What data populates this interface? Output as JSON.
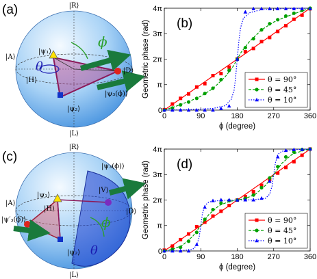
{
  "panels": {
    "a": "(a)",
    "b": "(b)",
    "c": "(c)",
    "d": "(d)"
  },
  "sphere": {
    "ket_R": "|R⟩",
    "ket_L": "|L⟩",
    "ket_A": "|A⟩",
    "ket_D": "|D⟩",
    "ket_H": "|H⟩",
    "ket_V": "|V⟩",
    "psi1": "|ψ₁⟩",
    "psi2": "|ψ₂⟩",
    "psi3": "|ψ₃(ϕ)⟩",
    "psi3p": "|ψ′₃(ϕ)⟩",
    "phi": "ϕ",
    "theta": "θ"
  },
  "colors": {
    "theta90": "#ff0000",
    "theta45": "#00a000",
    "theta10": "#0000ff"
  },
  "chart_data": [
    {
      "type": "line",
      "panel": "(b)",
      "xlabel": "ϕ (degree)",
      "ylabel": "Geometric phase (rad)",
      "xlim": [
        0,
        360
      ],
      "ylim": [
        0,
        12.566
      ],
      "xticks": [
        0,
        90,
        180,
        270,
        360
      ],
      "xtick_labels": [
        "0",
        "90",
        "180",
        "270",
        "360"
      ],
      "yticks": [
        0,
        3.1416,
        6.2832,
        9.4248,
        12.566
      ],
      "ytick_labels": [
        "0",
        "π",
        "2π",
        "3π",
        "4π"
      ],
      "legend_position": "bottom-right",
      "series": [
        {
          "name": "θ = 90°",
          "style": "solid",
          "marker": "square",
          "color": "#ff0000",
          "x": [
            0,
            24,
            48,
            72,
            96,
            120,
            144,
            168,
            192,
            216,
            240,
            264,
            288,
            312,
            336,
            360
          ],
          "y": [
            0,
            0.84,
            1.68,
            2.51,
            3.35,
            4.19,
            5.03,
            5.86,
            6.7,
            7.54,
            8.38,
            9.22,
            10.05,
            10.89,
            11.73,
            12.57
          ],
          "markers_x": [
            0,
            20,
            40,
            60,
            80,
            100,
            120,
            140,
            160,
            180,
            200,
            220,
            240,
            260,
            280,
            300,
            320,
            340,
            360
          ],
          "markers_y": [
            0.05,
            0.75,
            1.45,
            2.0,
            2.85,
            3.25,
            4.25,
            4.5,
            5.3,
            6.3,
            7.2,
            7.6,
            8.45,
            8.95,
            9.7,
            10.4,
            11.2,
            11.7,
            12.5
          ]
        },
        {
          "name": "θ = 45°",
          "style": "dashed",
          "marker": "circle",
          "color": "#00a000",
          "x": [
            0,
            30,
            60,
            90,
            120,
            150,
            170,
            180,
            190,
            210,
            240,
            270,
            300,
            330,
            360
          ],
          "y": [
            0,
            0.5,
            1.05,
            1.7,
            2.65,
            4.1,
            5.4,
            6.28,
            7.15,
            8.45,
            9.9,
            10.85,
            11.5,
            12.05,
            12.57
          ],
          "markers_x": [
            0,
            20,
            40,
            60,
            80,
            100,
            120,
            140,
            160,
            180,
            200,
            220,
            240,
            260,
            280,
            300,
            320,
            340,
            360
          ],
          "markers_y": [
            0,
            0.25,
            0.65,
            1.0,
            1.45,
            2.05,
            2.7,
            3.75,
            4.9,
            6.28,
            7.7,
            8.8,
            9.9,
            10.65,
            11.15,
            11.6,
            11.95,
            12.3,
            12.57
          ]
        },
        {
          "name": "θ = 10°",
          "style": "dotted",
          "marker": "triangle",
          "color": "#0000ff",
          "x": [
            0,
            60,
            120,
            150,
            165,
            172,
            176,
            180,
            184,
            188,
            195,
            210,
            240,
            300,
            360
          ],
          "y": [
            0,
            0.05,
            0.2,
            0.55,
            1.3,
            2.4,
            4.0,
            6.28,
            8.5,
            10.1,
            11.3,
            12.0,
            12.4,
            12.52,
            12.57
          ],
          "markers_x": [
            0,
            20,
            40,
            60,
            80,
            100,
            120,
            140,
            160,
            180,
            200,
            220,
            240,
            260,
            280,
            300,
            320,
            340,
            360
          ],
          "markers_y": [
            0,
            0,
            0,
            0,
            0,
            0,
            0,
            0.2,
            0.5,
            6.28,
            12.1,
            12.5,
            12.5,
            12.5,
            12.5,
            12.5,
            12.5,
            12.5,
            12.5
          ]
        }
      ]
    },
    {
      "type": "line",
      "panel": "(d)",
      "xlabel": "ϕ (degree)",
      "ylabel": "Geometric phase (rad)",
      "xlim": [
        0,
        360
      ],
      "ylim": [
        0,
        12.566
      ],
      "xticks": [
        0,
        90,
        180,
        270,
        360
      ],
      "xtick_labels": [
        "0",
        "90",
        "180",
        "270",
        "360"
      ],
      "yticks": [
        0,
        3.1416,
        6.2832,
        9.4248,
        12.566
      ],
      "ytick_labels": [
        "0",
        "π",
        "2π",
        "3π",
        "4π"
      ],
      "legend_position": "bottom-right",
      "series": [
        {
          "name": "θ = 90°",
          "style": "solid",
          "marker": "square",
          "color": "#ff0000",
          "x": [
            0,
            45,
            90,
            135,
            180,
            225,
            270,
            315,
            360
          ],
          "y": [
            0,
            1.57,
            3.14,
            4.71,
            6.28,
            7.85,
            9.42,
            11.0,
            12.57
          ],
          "markers_x": [
            0,
            20,
            40,
            60,
            80,
            100,
            120,
            140,
            160,
            180,
            200,
            220,
            240,
            260,
            280,
            300,
            320,
            340,
            360
          ],
          "markers_y": [
            0.1,
            0.6,
            1.4,
            2.1,
            3.0,
            3.55,
            4.3,
            4.9,
            5.6,
            6.28,
            6.7,
            7.3,
            8.1,
            8.8,
            9.6,
            10.3,
            11.0,
            11.8,
            12.57
          ]
        },
        {
          "name": "θ = 45°",
          "style": "dashed",
          "marker": "circle",
          "color": "#00a000",
          "x": [
            0,
            20,
            45,
            70,
            90,
            110,
            135,
            160,
            180,
            200,
            225,
            250,
            270,
            290,
            315,
            340,
            360
          ],
          "y": [
            0,
            0.2,
            0.7,
            1.8,
            3.14,
            4.5,
            5.6,
            6.1,
            6.28,
            6.46,
            7.0,
            8.1,
            9.42,
            10.8,
            11.9,
            12.35,
            12.57
          ],
          "markers_x": [
            0,
            20,
            40,
            60,
            80,
            100,
            120,
            140,
            160,
            180,
            200,
            220,
            240,
            260,
            280,
            300,
            320,
            340,
            360
          ],
          "markers_y": [
            0,
            0.2,
            0.45,
            1.2,
            2.3,
            3.9,
            5.1,
            5.9,
            6.2,
            6.28,
            6.5,
            6.9,
            7.8,
            9.0,
            10.4,
            11.6,
            12.2,
            12.5,
            12.57
          ]
        },
        {
          "name": "θ = 10°",
          "style": "dotted",
          "marker": "triangle",
          "color": "#0000ff",
          "x": [
            0,
            40,
            70,
            80,
            86,
            90,
            94,
            100,
            110,
            140,
            180,
            220,
            250,
            260,
            266,
            270,
            274,
            280,
            290,
            320,
            360
          ],
          "y": [
            0,
            0.02,
            0.2,
            0.7,
            1.7,
            3.14,
            4.6,
            5.6,
            6.05,
            6.25,
            6.28,
            6.31,
            6.5,
            7.0,
            8.0,
            9.42,
            10.8,
            11.9,
            12.3,
            12.5,
            12.57
          ],
          "markers_x": [
            0,
            20,
            40,
            60,
            80,
            100,
            120,
            140,
            160,
            180,
            200,
            220,
            240,
            260,
            280,
            300,
            320,
            340,
            360
          ],
          "markers_y": [
            0,
            0,
            0,
            0,
            0.8,
            5.4,
            6.2,
            6.3,
            6.3,
            6.28,
            6.3,
            6.3,
            6.5,
            8.6,
            11.6,
            12.4,
            12.5,
            12.5,
            12.57
          ]
        }
      ]
    }
  ]
}
